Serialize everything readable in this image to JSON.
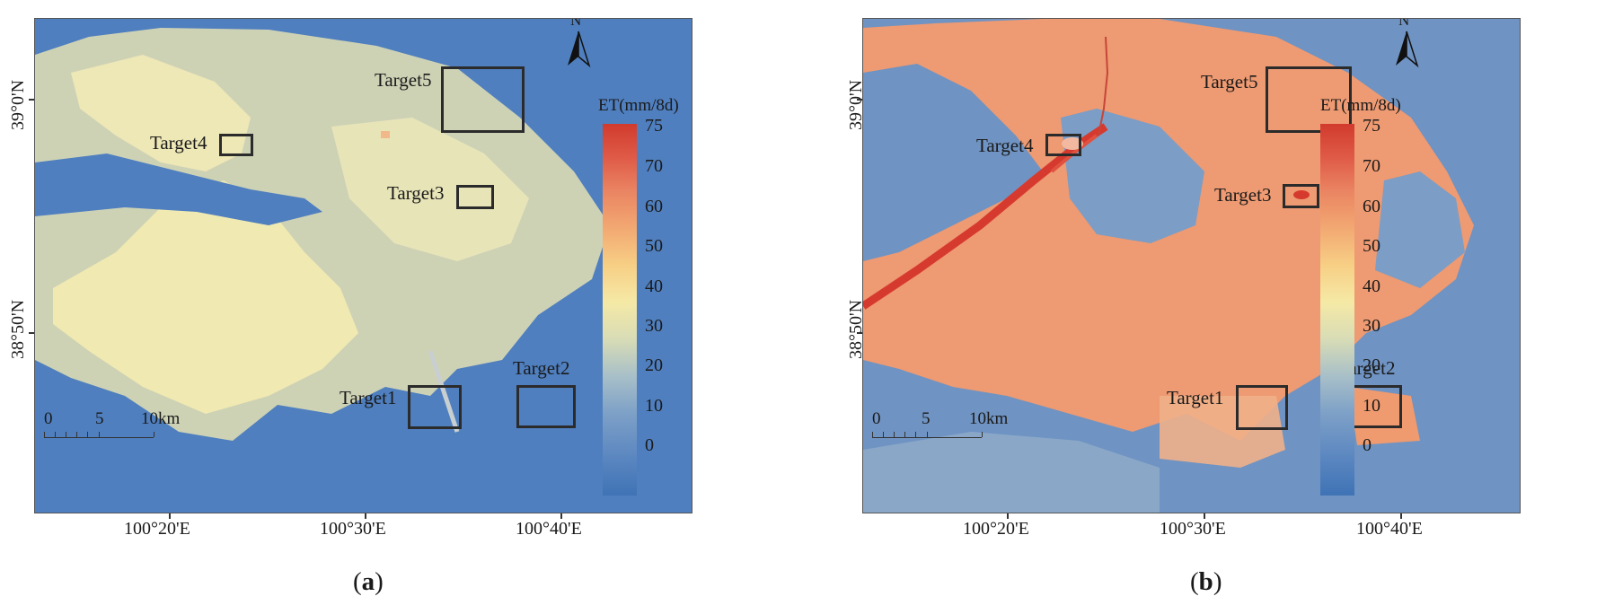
{
  "panels": [
    {
      "caption_letter": "a",
      "legend_title": "ET(mm/8d)",
      "legend_ticks": [
        "75",
        "70",
        "60",
        "50",
        "40",
        "30",
        "20",
        "10",
        "0"
      ],
      "lat_labels": [
        "39°0'N",
        "38°50'N"
      ],
      "lon_labels": [
        "100°20'E",
        "100°30'E",
        "100°40'E"
      ],
      "north_label": "N",
      "scalebar": {
        "labels": [
          "0",
          "5",
          "10km"
        ]
      },
      "targets": [
        "Target1",
        "Target2",
        "Target3",
        "Target4",
        "Target5"
      ]
    },
    {
      "caption_letter": "b",
      "legend_title": "ET(mm/8d)",
      "legend_ticks": [
        "75",
        "70",
        "60",
        "50",
        "40",
        "30",
        "20",
        "10",
        "0"
      ],
      "lat_labels": [
        "39°0'N",
        "38°50'N"
      ],
      "lon_labels": [
        "100°20'E",
        "100°30'E",
        "100°40'E"
      ],
      "north_label": "N",
      "scalebar": {
        "labels": [
          "0",
          "5",
          "10km"
        ]
      },
      "targets": [
        "Target1",
        "Target2",
        "Target3",
        "Target4",
        "Target5"
      ]
    }
  ],
  "colors": {
    "background_low_et": "#4f7fbf",
    "oasis_panel_a": "#e9e6b3",
    "oasis_panel_b": "#ee9a72",
    "river_high_et": "#d63a2f",
    "target_box": "#2b2b2b"
  }
}
